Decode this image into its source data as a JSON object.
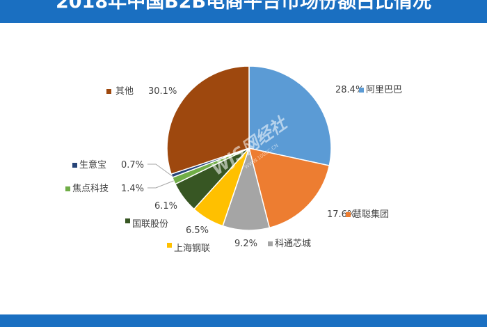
{
  "title": "2018年中国B2B电商平台市场份额占比情况",
  "watermark": {
    "logo": "WJS网经社",
    "url": "WWW.100EC.CN"
  },
  "chart_data": {
    "type": "pie",
    "title": "2018年中国B2B电商平台市场份额占比情况",
    "legend": "inline",
    "slices": [
      {
        "name": "阿里巴巴",
        "value": 28.4,
        "label": "28.4%",
        "color": "#5b9bd5"
      },
      {
        "name": "慧聪集团",
        "value": 17.6,
        "label": "17.6%",
        "color": "#ed7d31"
      },
      {
        "name": "科通芯城",
        "value": 9.2,
        "label": "9.2%",
        "color": "#a5a5a5"
      },
      {
        "name": "上海钢联",
        "value": 6.5,
        "label": "6.5%",
        "color": "#ffc000"
      },
      {
        "name": "国联股份",
        "value": 6.1,
        "label": "6.1%",
        "color": "#375623"
      },
      {
        "name": "焦点科技",
        "value": 1.4,
        "label": "1.4%",
        "color": "#70ad47"
      },
      {
        "name": "生意宝",
        "value": 0.7,
        "label": "0.7%",
        "color": "#264478"
      },
      {
        "name": "其他",
        "value": 30.1,
        "label": "30.1%",
        "color": "#9e480e"
      }
    ]
  }
}
